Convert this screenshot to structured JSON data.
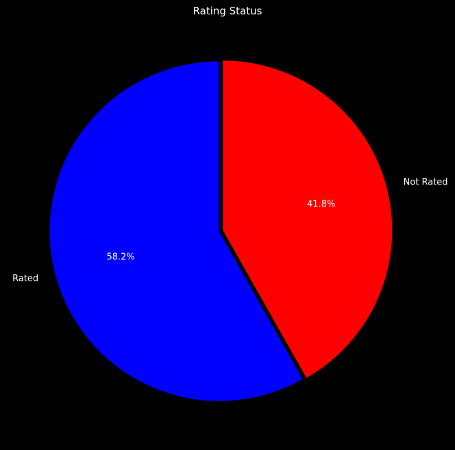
{
  "chart_data": {
    "type": "pie",
    "title": "Rating Status",
    "categories": [
      "Not Rated",
      "Rated"
    ],
    "values": [
      41.8,
      58.2
    ],
    "value_labels": [
      "41.8%",
      "58.2%"
    ],
    "colors": [
      "#ff0000",
      "#0000ff"
    ],
    "start_angle_deg": 90,
    "direction": "clockwise",
    "explode": [
      0.02,
      0
    ],
    "edge_color": "#000000",
    "background": "#000000",
    "text_color": "#ffffff",
    "legend": "none"
  }
}
